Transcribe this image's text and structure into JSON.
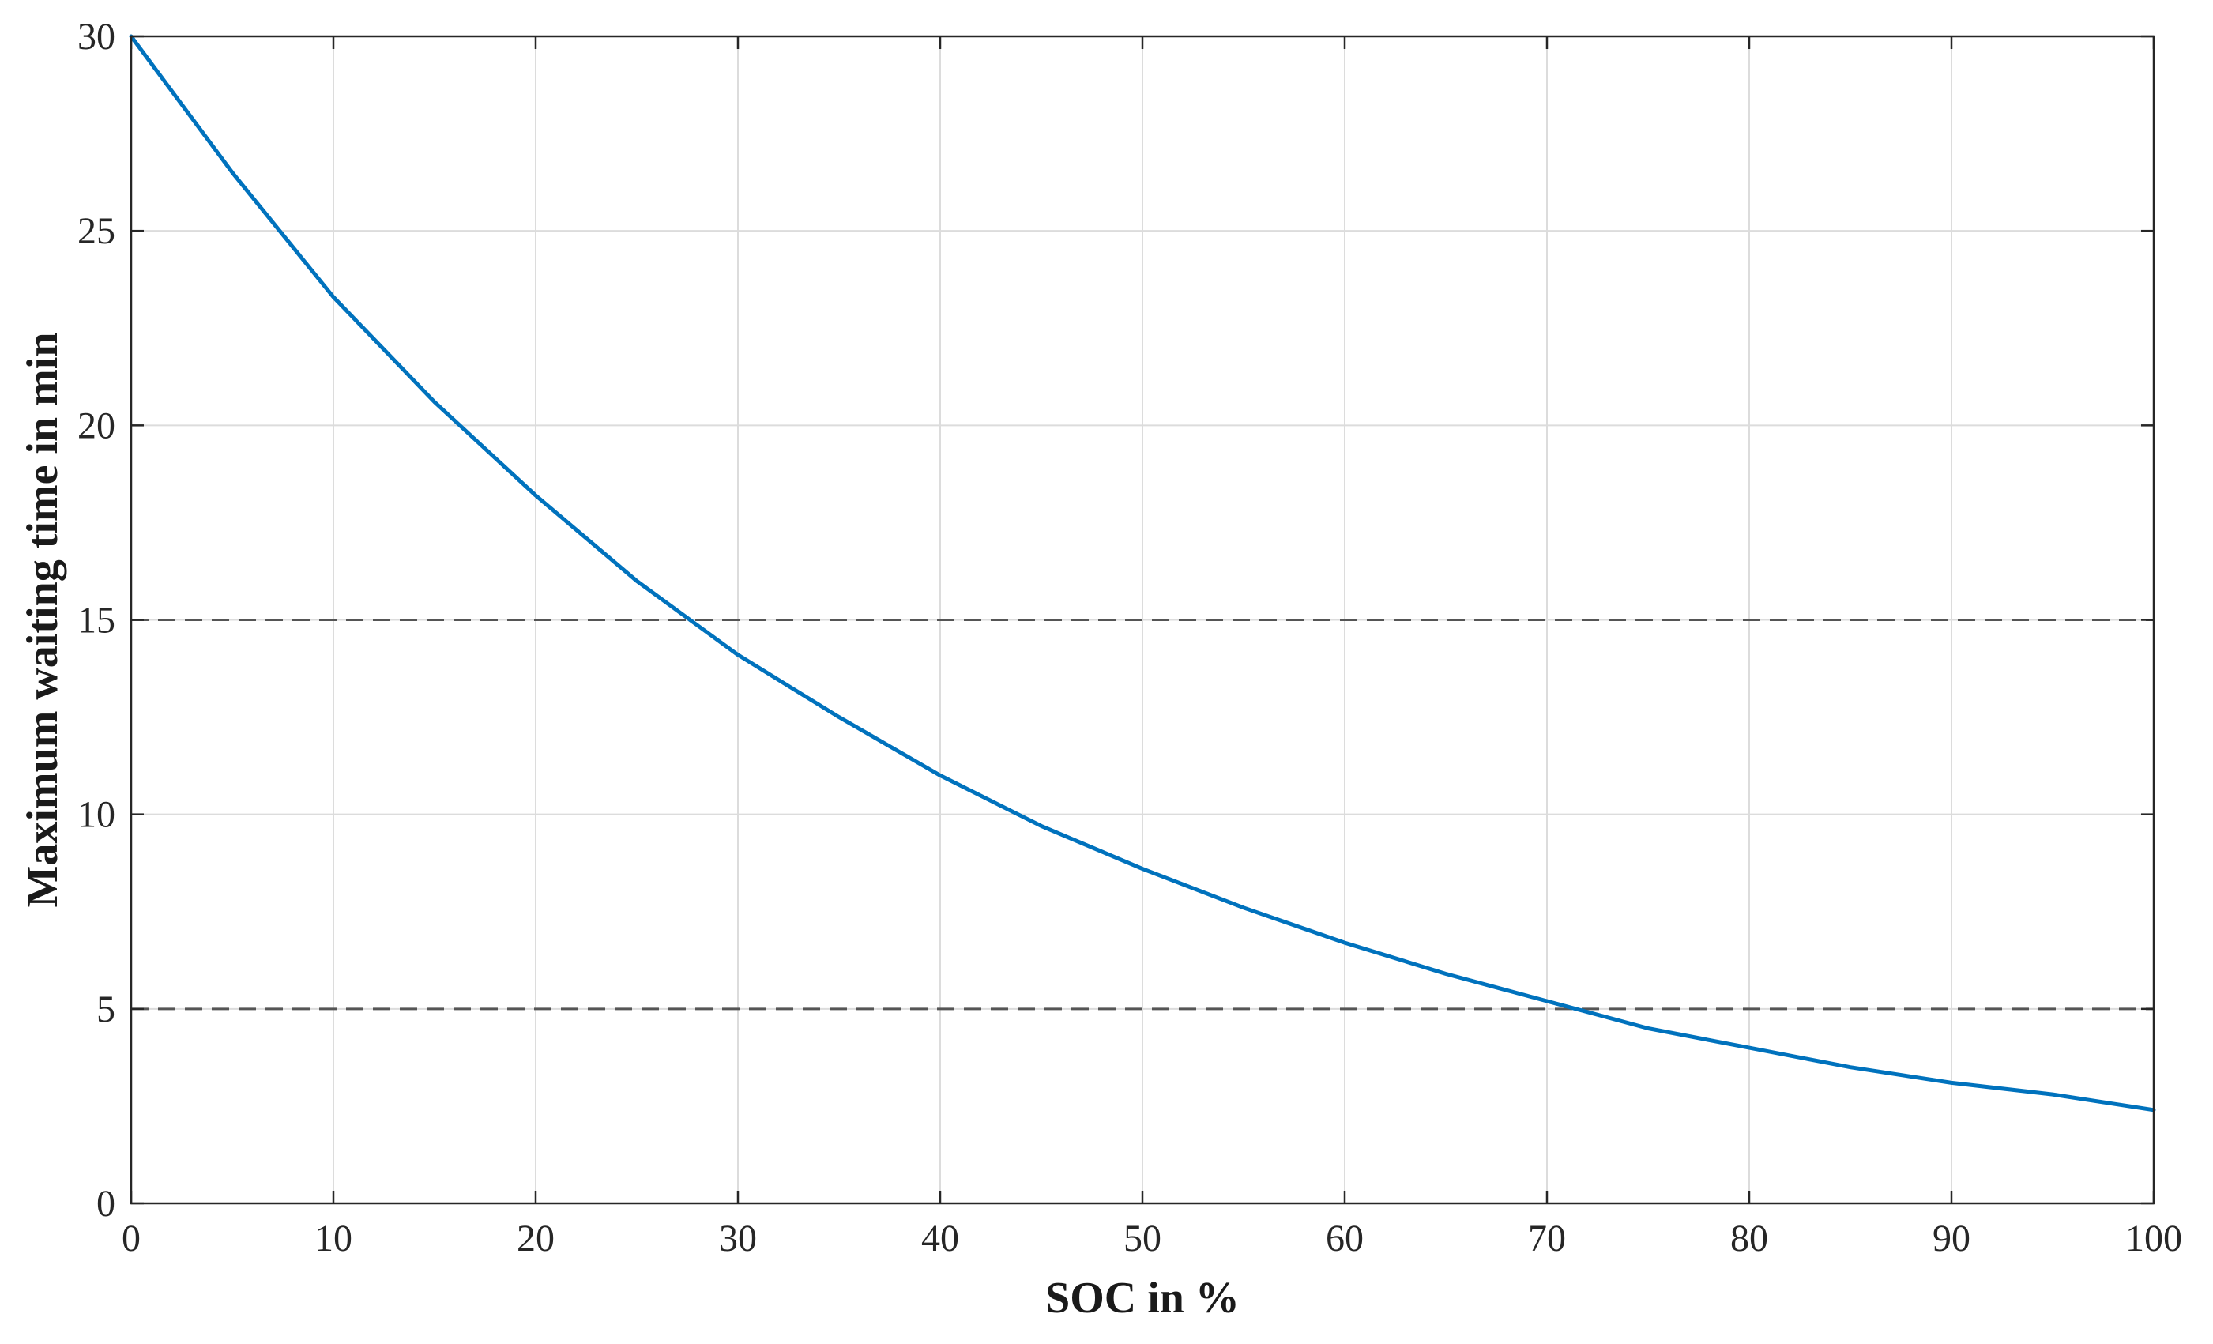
{
  "chart_data": {
    "type": "line",
    "title": "",
    "xlabel": "SOC in %",
    "ylabel": "Maximum waiting time in min",
    "xlim": [
      0,
      100
    ],
    "ylim": [
      0,
      30
    ],
    "x_ticks": [
      0,
      10,
      20,
      30,
      40,
      50,
      60,
      70,
      80,
      90,
      100
    ],
    "y_ticks": [
      0,
      5,
      10,
      15,
      20,
      25,
      30
    ],
    "x_tick_labels": [
      "0",
      "10",
      "20",
      "30",
      "40",
      "50",
      "60",
      "70",
      "80",
      "90",
      "100"
    ],
    "y_tick_labels": [
      "0",
      "5",
      "10",
      "15",
      "20",
      "25",
      "30"
    ],
    "grid": true,
    "series": [
      {
        "color": "#0072BD",
        "x": [
          0,
          5,
          10,
          15,
          20,
          25,
          30,
          35,
          40,
          45,
          50,
          55,
          60,
          65,
          70,
          75,
          80,
          85,
          90,
          95,
          100
        ],
        "y": [
          30,
          26.5,
          23.3,
          20.6,
          18.2,
          16.0,
          14.1,
          12.5,
          11.0,
          9.7,
          8.6,
          7.6,
          6.7,
          5.9,
          5.2,
          4.5,
          4.0,
          3.5,
          3.1,
          2.8,
          2.4
        ]
      }
    ],
    "reference_lines": [
      {
        "axis": "y",
        "value": 15,
        "style": "dashed",
        "color": "#555555"
      },
      {
        "axis": "y",
        "value": 5,
        "style": "dashed",
        "color": "#555555"
      }
    ]
  }
}
